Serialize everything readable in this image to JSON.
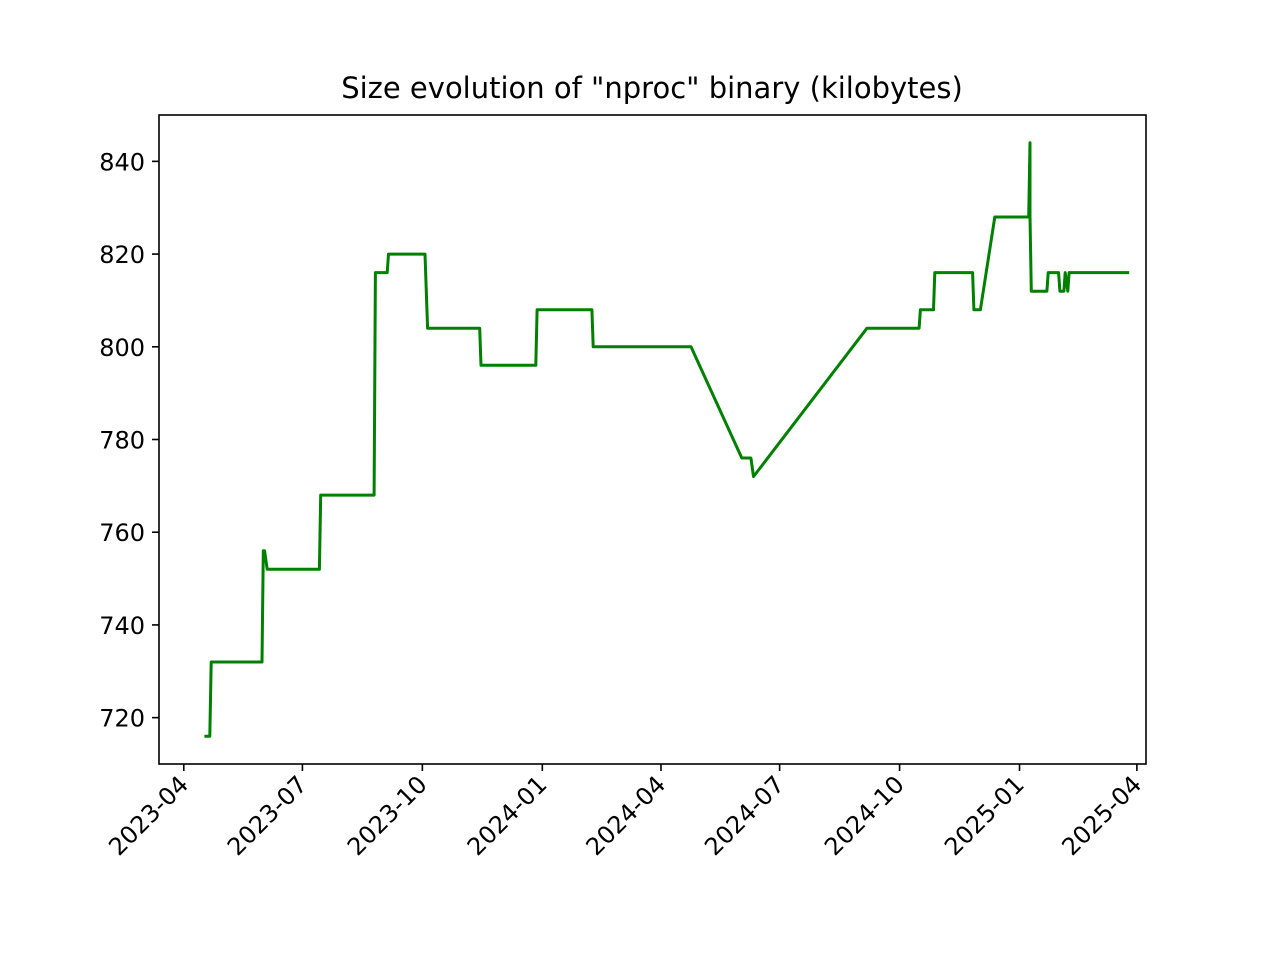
{
  "chart_data": {
    "type": "line",
    "title": "Size evolution of \"nproc\" binary (kilobytes)",
    "xlabel": "",
    "ylabel": "",
    "xlim": [
      "2023-03-13",
      "2025-04-08"
    ],
    "ylim": [
      710,
      850
    ],
    "grid": false,
    "x_ticks": [
      "2023-04",
      "2023-07",
      "2023-10",
      "2024-01",
      "2024-04",
      "2024-07",
      "2024-10",
      "2025-01",
      "2025-04"
    ],
    "y_ticks": [
      720,
      740,
      760,
      780,
      800,
      820,
      840
    ],
    "colors": {
      "line": "#008000",
      "axes": "#000000",
      "background": "#ffffff"
    },
    "series": [
      {
        "points": [
          [
            "2023-04-18",
            716
          ],
          [
            "2023-04-21",
            716
          ],
          [
            "2023-04-22",
            732
          ],
          [
            "2023-05-31",
            732
          ],
          [
            "2023-06-01",
            756
          ],
          [
            "2023-06-02",
            756
          ],
          [
            "2023-06-04",
            752
          ],
          [
            "2023-07-14",
            752
          ],
          [
            "2023-07-15",
            768
          ],
          [
            "2023-08-25",
            768
          ],
          [
            "2023-08-26",
            816
          ],
          [
            "2023-09-04",
            816
          ],
          [
            "2023-09-05",
            820
          ],
          [
            "2023-10-03",
            820
          ],
          [
            "2023-10-05",
            804
          ],
          [
            "2023-11-14",
            804
          ],
          [
            "2023-11-15",
            796
          ],
          [
            "2023-12-27",
            796
          ],
          [
            "2023-12-28",
            808
          ],
          [
            "2024-02-08",
            808
          ],
          [
            "2024-02-09",
            800
          ],
          [
            "2024-04-24",
            800
          ],
          [
            "2024-06-02",
            776
          ],
          [
            "2024-06-09",
            776
          ],
          [
            "2024-06-11",
            772
          ],
          [
            "2024-09-06",
            804
          ],
          [
            "2024-10-16",
            804
          ],
          [
            "2024-10-17",
            808
          ],
          [
            "2024-10-27",
            808
          ],
          [
            "2024-10-28",
            816
          ],
          [
            "2024-11-26",
            816
          ],
          [
            "2024-11-27",
            808
          ],
          [
            "2024-12-02",
            808
          ],
          [
            "2024-12-13",
            828
          ],
          [
            "2025-01-08",
            828
          ],
          [
            "2025-01-09",
            844
          ],
          [
            "2025-01-09",
            828
          ],
          [
            "2025-01-10",
            812
          ],
          [
            "2025-01-22",
            812
          ],
          [
            "2025-01-23",
            816
          ],
          [
            "2025-01-31",
            816
          ],
          [
            "2025-02-01",
            812
          ],
          [
            "2025-02-04",
            812
          ],
          [
            "2025-02-05",
            816
          ],
          [
            "2025-02-07",
            812
          ],
          [
            "2025-02-08",
            816
          ],
          [
            "2025-03-25",
            816
          ]
        ]
      }
    ]
  }
}
